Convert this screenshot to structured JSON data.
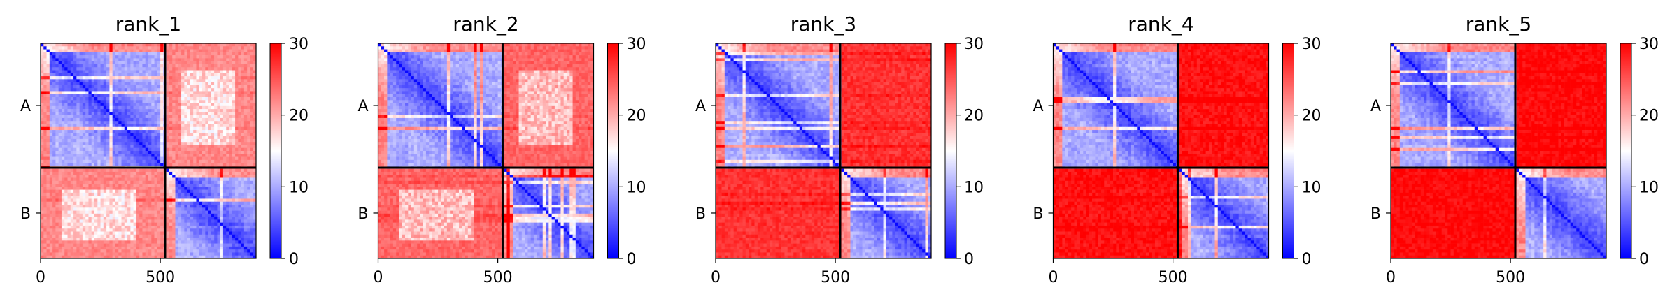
{
  "colorbar": {
    "ticks": [
      0,
      10,
      20,
      30
    ],
    "vmin": 0,
    "vmax": 30,
    "colormap": [
      "#0000ff",
      "#ffffff",
      "#ff0000"
    ]
  },
  "chart_data": [
    {
      "type": "heatmap",
      "title": "rank_1",
      "x_ticks": [
        0,
        500
      ],
      "x_range": [
        0,
        900
      ],
      "y_ticks": [
        "A",
        "B"
      ],
      "chain_boundary": 520,
      "chain_labels": [
        "A",
        "B"
      ],
      "intra_chain_pae": "low (~3-12)",
      "inter_chain_pae_mean": 22,
      "inter_chain_has_pale_region": true,
      "colorbar_range": [
        0,
        30
      ]
    },
    {
      "type": "heatmap",
      "title": "rank_2",
      "x_ticks": [
        0,
        500
      ],
      "x_range": [
        0,
        900
      ],
      "y_ticks": [
        "A",
        "B"
      ],
      "chain_boundary": 520,
      "chain_labels": [
        "A",
        "B"
      ],
      "intra_chain_pae": "low (~3-12)",
      "inter_chain_pae_mean": 24,
      "inter_chain_has_pale_region": true,
      "colorbar_range": [
        0,
        30
      ]
    },
    {
      "type": "heatmap",
      "title": "rank_3",
      "x_ticks": [
        0,
        500
      ],
      "x_range": [
        0,
        900
      ],
      "y_ticks": [
        "A",
        "B"
      ],
      "chain_boundary": 520,
      "chain_labels": [
        "A",
        "B"
      ],
      "intra_chain_pae": "low (~3-12)",
      "inter_chain_pae_mean": 27,
      "inter_chain_has_pale_region": false,
      "colorbar_range": [
        0,
        30
      ]
    },
    {
      "type": "heatmap",
      "title": "rank_4",
      "x_ticks": [
        0,
        500
      ],
      "x_range": [
        0,
        900
      ],
      "y_ticks": [
        "A",
        "B"
      ],
      "chain_boundary": 520,
      "chain_labels": [
        "A",
        "B"
      ],
      "intra_chain_pae": "low (~3-12)",
      "inter_chain_pae_mean": 29,
      "inter_chain_has_pale_region": false,
      "colorbar_range": [
        0,
        30
      ]
    },
    {
      "type": "heatmap",
      "title": "rank_5",
      "x_ticks": [
        0,
        500
      ],
      "x_range": [
        0,
        900
      ],
      "y_ticks": [
        "A",
        "B"
      ],
      "chain_boundary": 520,
      "chain_labels": [
        "A",
        "B"
      ],
      "intra_chain_pae": "low (~3-12)",
      "inter_chain_pae_mean": 29.5,
      "inter_chain_has_pale_region": false,
      "colorbar_range": [
        0,
        30
      ]
    }
  ]
}
